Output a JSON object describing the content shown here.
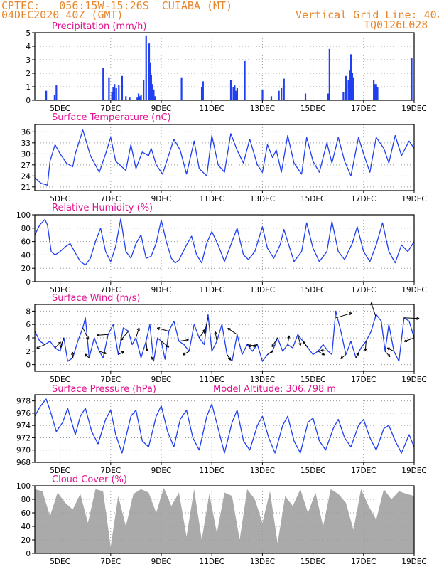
{
  "header": {
    "line1_left": "CPTEC:   056:15W-15:26S  CUIABA (MT)",
    "line2_left": "04DEC2020 40Z (GMT)",
    "line2_right": "Vertical Grid Line: 40Z",
    "line3_right": "TQ0126L028"
  },
  "colors": {
    "header_text": "#e8882e",
    "panel_title": "#e0128f",
    "series_line": "#1f3ff0",
    "precip_bar": "#1f3ff0",
    "cloud_fill": "#aaaaaa",
    "wind_arrow": "#000000",
    "grid": "#9a9a9a"
  },
  "x_ticks": [
    "5DEC",
    "7DEC",
    "9DEC",
    "11DEC",
    "13DEC",
    "15DEC",
    "17DEC",
    "19DEC"
  ],
  "chart_data": [
    {
      "type": "bar",
      "title": "Precipitation (mm/h)",
      "x_ticks": [
        "5DEC",
        "7DEC",
        "9DEC",
        "11DEC",
        "13DEC",
        "15DEC",
        "17DEC",
        "19DEC"
      ],
      "ylim": [
        0,
        5
      ],
      "yticks": [
        0,
        1,
        2,
        3,
        4,
        5
      ],
      "grid": true,
      "x_days": [
        4.45,
        4.78,
        4.85,
        6.7,
        6.93,
        7.05,
        7.1,
        7.15,
        7.22,
        7.32,
        7.45,
        7.6,
        7.75,
        8.05,
        8.1,
        8.15,
        8.2,
        8.3,
        8.4,
        8.5,
        8.52,
        8.55,
        8.6,
        8.65,
        8.7,
        8.75,
        9.8,
        10.6,
        10.65,
        11.75,
        11.85,
        11.9,
        11.95,
        12.0,
        12.3,
        13.0,
        13.35,
        13.65,
        13.75,
        13.85,
        14.7,
        15.6,
        15.65,
        16.2,
        16.3,
        16.4,
        16.45,
        16.5,
        16.55,
        16.6,
        17.4,
        17.45,
        17.5,
        17.55,
        18.9
      ],
      "values": [
        0.7,
        0.4,
        1.1,
        2.4,
        1.7,
        0.6,
        1.0,
        1.2,
        0.9,
        1.1,
        1.8,
        0.3,
        0.2,
        0.2,
        0.5,
        0.3,
        0.4,
        1.5,
        4.8,
        1.8,
        4.2,
        2.8,
        1.9,
        1.2,
        0.8,
        0.3,
        1.7,
        1.0,
        1.4,
        1.5,
        1.0,
        1.1,
        0.7,
        0.9,
        2.9,
        0.8,
        0.3,
        0.7,
        0.9,
        1.6,
        0.5,
        0.5,
        3.8,
        0.6,
        1.8,
        1.5,
        2.2,
        3.4,
        2.0,
        1.7,
        1.5,
        1.2,
        1.2,
        1.0,
        3.1
      ]
    },
    {
      "type": "line",
      "title": "Surface Temperature (nC)",
      "x_ticks": [
        "5DEC",
        "7DEC",
        "9DEC",
        "11DEC",
        "13DEC",
        "15DEC",
        "17DEC",
        "19DEC"
      ],
      "ylim": [
        20,
        38
      ],
      "yticks": [
        21,
        24,
        27,
        30,
        33,
        36
      ],
      "grid": true,
      "x_days": [
        4.0,
        4.25,
        4.5,
        4.6,
        4.8,
        5.0,
        5.25,
        5.5,
        5.6,
        5.9,
        6.2,
        6.55,
        6.8,
        7.0,
        7.2,
        7.6,
        7.8,
        8.0,
        8.25,
        8.5,
        8.6,
        8.8,
        9.05,
        9.5,
        9.75,
        10.0,
        10.3,
        10.5,
        10.8,
        11.0,
        11.25,
        11.5,
        11.75,
        12.0,
        12.25,
        12.5,
        12.8,
        13.0,
        13.2,
        13.4,
        13.55,
        13.75,
        14.0,
        14.25,
        14.55,
        14.75,
        15.0,
        15.25,
        15.55,
        15.75,
        16.0,
        16.25,
        16.5,
        16.8,
        17.0,
        17.25,
        17.5,
        17.8,
        18.0,
        18.25,
        18.5,
        18.8,
        19.0
      ],
      "values": [
        23.5,
        22,
        21.5,
        28,
        32.5,
        30,
        27.5,
        26.5,
        30,
        36.5,
        29.5,
        25,
        30,
        34.5,
        28,
        25.5,
        32.5,
        26,
        30.5,
        29.5,
        31.5,
        27,
        24.5,
        34,
        31,
        24.5,
        33.5,
        26,
        24,
        35,
        27,
        25,
        35.5,
        31,
        27.5,
        34,
        27,
        25,
        32.5,
        29,
        31,
        25,
        35,
        27.5,
        24.5,
        34.5,
        28,
        25,
        33,
        27.5,
        34.5,
        28,
        24,
        34.5,
        30,
        25,
        34.5,
        31.5,
        27.5,
        35,
        29.5,
        33.5,
        31.5
      ]
    },
    {
      "type": "line",
      "title": "Relative Humidity (%)",
      "x_ticks": [
        "5DEC",
        "7DEC",
        "9DEC",
        "11DEC",
        "13DEC",
        "15DEC",
        "17DEC",
        "19DEC"
      ],
      "ylim": [
        0,
        100
      ],
      "yticks": [
        0,
        20,
        40,
        60,
        80,
        100
      ],
      "grid": true,
      "x_days": [
        4.0,
        4.2,
        4.4,
        4.5,
        4.65,
        4.8,
        5.0,
        5.2,
        5.4,
        5.6,
        5.8,
        6.0,
        6.2,
        6.4,
        6.6,
        6.8,
        7.0,
        7.2,
        7.4,
        7.6,
        7.8,
        8.0,
        8.2,
        8.4,
        8.6,
        8.8,
        9.0,
        9.2,
        9.4,
        9.55,
        9.7,
        9.8,
        10.0,
        10.2,
        10.4,
        10.6,
        10.8,
        11.0,
        11.25,
        11.5,
        11.8,
        12.0,
        12.25,
        12.45,
        12.7,
        13.0,
        13.2,
        13.45,
        13.7,
        13.85,
        14.0,
        14.25,
        14.55,
        14.75,
        15.0,
        15.25,
        15.55,
        15.75,
        16.0,
        16.25,
        16.55,
        16.75,
        17.0,
        17.25,
        17.5,
        17.75,
        18.0,
        18.25,
        18.5,
        18.75,
        19.0
      ],
      "values": [
        70,
        85,
        93,
        85,
        45,
        40,
        45,
        52,
        57,
        43,
        30,
        25,
        35,
        60,
        80,
        45,
        30,
        53,
        94,
        45,
        35,
        57,
        70,
        35,
        38,
        58,
        92,
        60,
        35,
        28,
        32,
        40,
        55,
        68,
        40,
        28,
        58,
        75,
        55,
        30,
        60,
        80,
        40,
        33,
        45,
        82,
        50,
        35,
        55,
        78,
        60,
        30,
        45,
        88,
        50,
        30,
        45,
        90,
        45,
        33,
        57,
        82,
        45,
        30,
        55,
        88,
        45,
        28,
        55,
        45,
        60
      ]
    },
    {
      "type": "line",
      "title": "Surface Wind (m/s)",
      "x_ticks": [
        "5DEC",
        "7DEC",
        "9DEC",
        "11DEC",
        "13DEC",
        "15DEC",
        "17DEC",
        "19DEC"
      ],
      "ylim": [
        -1,
        9
      ],
      "yticks": [
        0,
        2,
        4,
        6,
        8
      ],
      "grid": true,
      "x_days": [
        4.0,
        4.2,
        4.4,
        4.6,
        4.8,
        5.0,
        5.15,
        5.3,
        5.5,
        5.7,
        5.9,
        6.0,
        6.15,
        6.35,
        6.55,
        6.7,
        6.9,
        7.1,
        7.3,
        7.5,
        7.7,
        7.85,
        8.0,
        8.2,
        8.4,
        8.55,
        8.7,
        8.85,
        9.0,
        9.15,
        9.3,
        9.5,
        9.7,
        9.9,
        10.1,
        10.3,
        10.5,
        10.7,
        10.85,
        11.0,
        11.2,
        11.4,
        11.6,
        11.8,
        12.0,
        12.2,
        12.4,
        12.6,
        12.8,
        13.0,
        13.2,
        13.4,
        13.6,
        13.8,
        14.0,
        14.2,
        14.4,
        14.6,
        14.8,
        15.0,
        15.2,
        15.4,
        15.6,
        15.75,
        15.9,
        16.1,
        16.3,
        16.5,
        16.7,
        16.9,
        17.1,
        17.3,
        17.5,
        17.7,
        17.85,
        18.0,
        18.2,
        18.4,
        18.6,
        18.8,
        19.0
      ],
      "values": [
        5.0,
        3.5,
        3.0,
        3.5,
        2.5,
        2.0,
        4.0,
        0.5,
        1.0,
        3.5,
        5.5,
        7.0,
        1.0,
        4.0,
        2.0,
        1.0,
        4.5,
        6.0,
        1.5,
        5.5,
        5.0,
        3.0,
        4.0,
        1.0,
        3.5,
        6.0,
        0.5,
        4.0,
        3.5,
        0.8,
        5.0,
        6.5,
        3.5,
        3.0,
        2.0,
        6.0,
        4.0,
        3.0,
        7.5,
        2.0,
        3.5,
        6.0,
        1.5,
        0.5,
        4.5,
        1.5,
        3.0,
        2.0,
        3.0,
        0.5,
        1.5,
        2.0,
        4.0,
        2.0,
        3.0,
        2.5,
        4.5,
        3.5,
        2.5,
        1.5,
        2.0,
        3.0,
        2.0,
        1.5,
        8.0,
        5.0,
        1.5,
        3.5,
        1.0,
        2.5,
        3.5,
        5.0,
        7.5,
        6.5,
        2.0,
        6.0,
        2.0,
        0.5,
        7.0,
        6.5,
        4.0
      ]
    },
    {
      "type": "line",
      "title": "Surface Pressure (hPa)",
      "subtitle": "Model Altitude: 306.798  m",
      "x_ticks": [
        "5DEC",
        "7DEC",
        "9DEC",
        "11DEC",
        "13DEC",
        "15DEC",
        "17DEC",
        "19DEC"
      ],
      "ylim": [
        968,
        979
      ],
      "yticks": [
        968,
        970,
        972,
        974,
        976,
        978
      ],
      "grid": true,
      "x_days": [
        4.0,
        4.2,
        4.45,
        4.6,
        4.85,
        5.1,
        5.3,
        5.6,
        5.8,
        6.0,
        6.25,
        6.5,
        6.8,
        7.0,
        7.2,
        7.45,
        7.8,
        8.0,
        8.25,
        8.5,
        8.8,
        9.0,
        9.25,
        9.5,
        9.75,
        10.0,
        10.25,
        10.5,
        10.8,
        11.0,
        11.25,
        11.5,
        11.8,
        12.0,
        12.25,
        12.5,
        12.8,
        13.0,
        13.25,
        13.5,
        13.8,
        14.0,
        14.25,
        14.5,
        14.8,
        15.0,
        15.25,
        15.5,
        15.8,
        16.0,
        16.25,
        16.5,
        16.8,
        17.0,
        17.25,
        17.5,
        17.8,
        18.0,
        18.25,
        18.5,
        18.8,
        19.0
      ],
      "values": [
        975.5,
        977,
        978.3,
        976.5,
        973,
        974.5,
        976.8,
        972.5,
        975.5,
        976.8,
        973,
        971,
        975,
        976.5,
        972.5,
        969.5,
        975.5,
        976.5,
        971.5,
        970.5,
        975.5,
        977.2,
        973,
        970.5,
        975,
        976.5,
        972,
        970,
        975.5,
        977.5,
        973.5,
        969.5,
        974.5,
        976.5,
        971.5,
        970,
        974,
        975.5,
        972,
        969.5,
        974,
        975.5,
        971.5,
        969.5,
        974.5,
        975.2,
        971.5,
        970,
        973.5,
        975,
        972,
        970.5,
        974,
        975,
        972,
        970,
        973.5,
        974,
        971.5,
        969.5,
        972.5,
        970.5
      ]
    },
    {
      "type": "area",
      "title": "Cloud Cover (%)",
      "x_ticks": [
        "5DEC",
        "7DEC",
        "9DEC",
        "11DEC",
        "13DEC",
        "15DEC",
        "17DEC",
        "19DEC"
      ],
      "ylim": [
        0,
        100
      ],
      "yticks": [
        0,
        20,
        40,
        60,
        80,
        100
      ],
      "grid": true,
      "x_days": [
        4.0,
        4.3,
        4.6,
        4.9,
        5.2,
        5.5,
        5.8,
        6.1,
        6.4,
        6.7,
        7.0,
        7.3,
        7.6,
        7.9,
        8.2,
        8.5,
        8.8,
        9.1,
        9.4,
        9.7,
        10.0,
        10.3,
        10.6,
        10.9,
        11.2,
        11.5,
        11.8,
        12.1,
        12.4,
        12.7,
        13.0,
        13.3,
        13.6,
        13.9,
        14.2,
        14.5,
        14.8,
        15.1,
        15.4,
        15.7,
        16.0,
        16.3,
        16.6,
        16.9,
        17.2,
        17.5,
        17.8,
        18.1,
        18.4,
        18.7,
        19.0
      ],
      "values": [
        95,
        92,
        55,
        90,
        75,
        65,
        88,
        45,
        95,
        92,
        10,
        85,
        40,
        88,
        95,
        90,
        60,
        97,
        70,
        90,
        25,
        95,
        20,
        88,
        30,
        90,
        85,
        20,
        95,
        80,
        45,
        92,
        15,
        85,
        70,
        95,
        60,
        90,
        40,
        95,
        88,
        75,
        35,
        95,
        70,
        50,
        95,
        80,
        92,
        88,
        85
      ]
    }
  ]
}
